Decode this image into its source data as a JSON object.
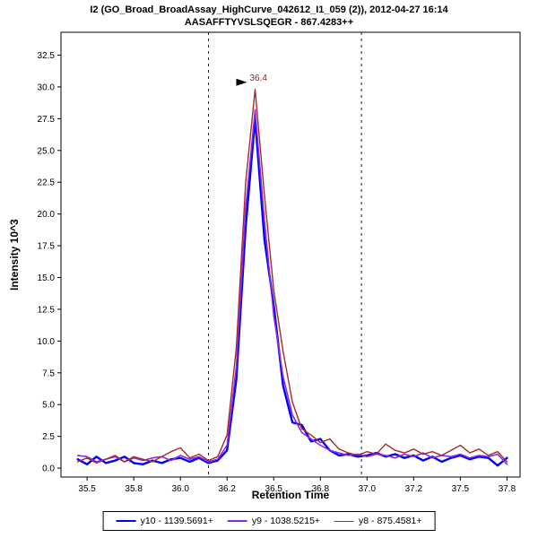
{
  "chart_data": {
    "type": "line",
    "title": "I2 (GO_Broad_BroadAssay_HighCurve_042612_I1_059 (2)), 2012-04-27 16:14",
    "subtitle": "AASAFFTYVSLSQEGR - 867.4283++",
    "xlabel": "Retention Time",
    "ylabel": "Intensity 10^3",
    "xlim": [
      35.36,
      37.82
    ],
    "ylim": [
      -0.7,
      34.3
    ],
    "grid": false,
    "legend_position": "bottom",
    "axis_color": "#000000",
    "background_color": "#ffffff",
    "yticks": [
      0.0,
      2.5,
      5.0,
      7.5,
      10.0,
      12.5,
      15.0,
      17.5,
      20.0,
      22.5,
      25.0,
      27.5,
      30.0,
      32.5
    ],
    "xticks": [
      {
        "v": 35.5,
        "label": "35.5"
      },
      {
        "v": 35.75,
        "label": "35.8"
      },
      {
        "v": 36.0,
        "label": "36.0"
      },
      {
        "v": 36.25,
        "label": "36.2"
      },
      {
        "v": 36.5,
        "label": "36.5"
      },
      {
        "v": 36.75,
        "label": "36.8"
      },
      {
        "v": 37.0,
        "label": "37.0"
      },
      {
        "v": 37.25,
        "label": "37.2"
      },
      {
        "v": 37.5,
        "label": "37.5"
      },
      {
        "v": 37.75,
        "label": "37.8"
      }
    ],
    "integration_boundaries": [
      36.15,
      36.97
    ],
    "peak_annotation": {
      "label": "36.4",
      "x": 36.4,
      "y": 29.8,
      "color": "#8b1a1a",
      "arrow_color": "#000000"
    },
    "x": [
      35.45,
      35.5,
      35.55,
      35.6,
      35.65,
      35.7,
      35.75,
      35.8,
      35.85,
      35.9,
      35.95,
      36.0,
      36.05,
      36.1,
      36.15,
      36.2,
      36.25,
      36.3,
      36.35,
      36.4,
      36.45,
      36.5,
      36.55,
      36.6,
      36.65,
      36.7,
      36.75,
      36.8,
      36.85,
      36.9,
      36.95,
      37.0,
      37.05,
      37.1,
      37.15,
      37.2,
      37.25,
      37.3,
      37.35,
      37.4,
      37.45,
      37.5,
      37.55,
      37.6,
      37.65,
      37.7,
      37.75
    ],
    "series": [
      {
        "name": "y10 - 1139.5691+",
        "color": "#0000ff",
        "width": 2.4,
        "values": [
          0.7,
          0.3,
          0.9,
          0.4,
          0.6,
          0.9,
          0.4,
          0.3,
          0.6,
          0.4,
          0.7,
          0.8,
          0.5,
          0.8,
          0.4,
          0.6,
          1.4,
          7.0,
          19.0,
          27.5,
          18.0,
          12.8,
          6.5,
          3.6,
          3.4,
          2.1,
          2.3,
          1.4,
          1.0,
          1.1,
          0.9,
          1.0,
          1.2,
          0.9,
          1.1,
          0.8,
          1.0,
          0.6,
          0.9,
          0.5,
          0.8,
          1.0,
          0.7,
          0.9,
          0.8,
          0.2,
          0.8
        ]
      },
      {
        "name": "y9 - 1038.5215+",
        "color": "#8a2be2",
        "width": 1.6,
        "values": [
          1.0,
          0.9,
          0.5,
          0.7,
          0.9,
          0.5,
          0.8,
          0.6,
          0.8,
          0.9,
          0.6,
          1.0,
          0.7,
          0.9,
          0.5,
          0.7,
          1.8,
          8.0,
          20.5,
          28.2,
          19.5,
          12.0,
          7.2,
          4.2,
          2.8,
          2.3,
          1.8,
          1.4,
          1.2,
          1.0,
          1.1,
          0.9,
          1.1,
          1.0,
          0.8,
          1.1,
          0.9,
          1.2,
          0.8,
          1.0,
          0.9,
          1.1,
          0.8,
          1.0,
          0.9,
          1.1,
          0.3
        ]
      },
      {
        "name": "y8 - 875.4581+",
        "color": "#a52a2a",
        "width": 1.4,
        "values": [
          0.5,
          0.8,
          0.4,
          0.7,
          1.0,
          0.5,
          0.9,
          0.7,
          0.5,
          0.9,
          1.3,
          1.6,
          0.8,
          1.1,
          0.6,
          0.9,
          2.6,
          9.5,
          22.5,
          29.8,
          21.5,
          14.0,
          9.2,
          5.2,
          3.1,
          2.6,
          2.0,
          2.3,
          1.5,
          1.2,
          1.0,
          1.3,
          1.1,
          1.9,
          1.4,
          1.2,
          1.5,
          1.1,
          1.3,
          1.0,
          1.4,
          1.8,
          1.2,
          1.5,
          1.0,
          1.3,
          0.5
        ]
      }
    ]
  }
}
